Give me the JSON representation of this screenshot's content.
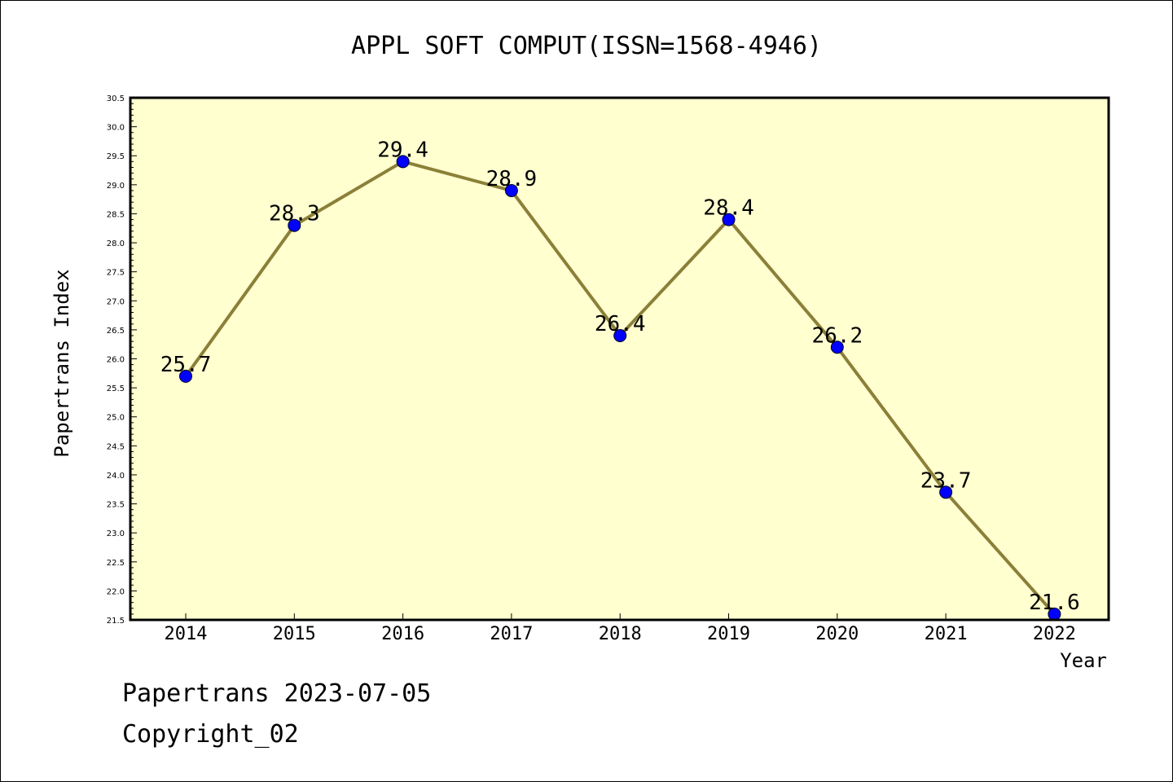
{
  "chart_data": {
    "type": "line",
    "title": "APPL SOFT COMPUT(ISSN=1568-4946)",
    "xlabel": "Year",
    "ylabel": "Papertrans Index",
    "categories": [
      "2014",
      "2015",
      "2016",
      "2017",
      "2018",
      "2019",
      "2020",
      "2021",
      "2022"
    ],
    "values": [
      25.7,
      28.3,
      29.4,
      28.9,
      26.4,
      28.4,
      26.2,
      23.7,
      21.6
    ],
    "data_labels": [
      "25.7",
      "28.3",
      "29.4",
      "28.9",
      "26.4",
      "28.4",
      "26.2",
      "23.7",
      "21.6"
    ],
    "ylim": [
      21.5,
      30.5
    ],
    "yticks": [
      "21.5",
      "22.0",
      "22.5",
      "23.0",
      "23.5",
      "24.0",
      "24.5",
      "25.0",
      "25.5",
      "26.0",
      "26.5",
      "27.0",
      "27.5",
      "28.0",
      "28.5",
      "29.0",
      "29.5",
      "30.0",
      "30.5"
    ],
    "grid": false,
    "legend": "none",
    "plot_background": "#FFFFD0",
    "line_color": "#8B8038",
    "marker_color": "#0000FF"
  },
  "footer": {
    "line1": "Papertrans 2023-07-05",
    "line2": "Copyright_02"
  }
}
